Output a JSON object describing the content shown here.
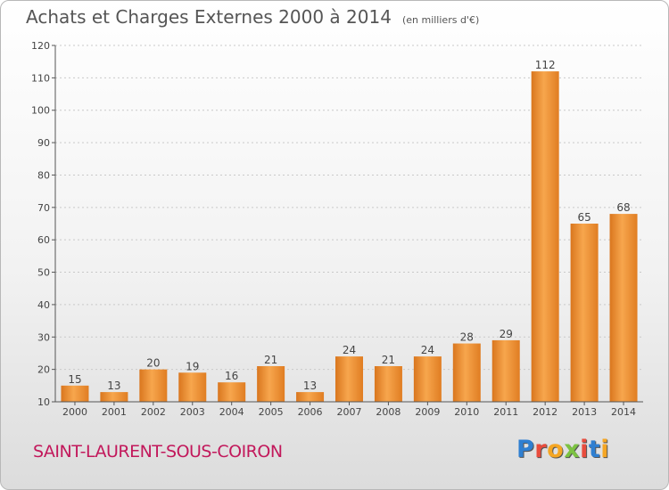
{
  "header": {
    "title": "Achats et Charges Externes 2000 à 2014",
    "subtitle": "(en milliers d'€)"
  },
  "footer": {
    "commune": "SAINT-LAURENT-SOUS-COIRON",
    "logo_letters": [
      "P",
      "r",
      "o",
      "x",
      "i",
      "t",
      "i"
    ],
    "logo_colors": [
      "#2f7fd1",
      "#e84c3d",
      "#f5a623",
      "#7cc242",
      "#e84c3d",
      "#2f7fd1",
      "#f5a623"
    ]
  },
  "chart_data": {
    "type": "bar",
    "title": "Achats et Charges Externes 2000 à 2014",
    "subtitle": "(en milliers d'€)",
    "categories": [
      "2000",
      "2001",
      "2002",
      "2003",
      "2004",
      "2005",
      "2006",
      "2007",
      "2008",
      "2009",
      "2010",
      "2011",
      "2012",
      "2013",
      "2014"
    ],
    "values": [
      15,
      13,
      20,
      19,
      16,
      21,
      13,
      24,
      21,
      24,
      28,
      29,
      112,
      65,
      68
    ],
    "ylim": [
      10,
      120
    ],
    "yticks": [
      10,
      20,
      30,
      40,
      50,
      60,
      70,
      80,
      90,
      100,
      110,
      120
    ],
    "grid": true,
    "bar_color": "#f0922e"
  }
}
